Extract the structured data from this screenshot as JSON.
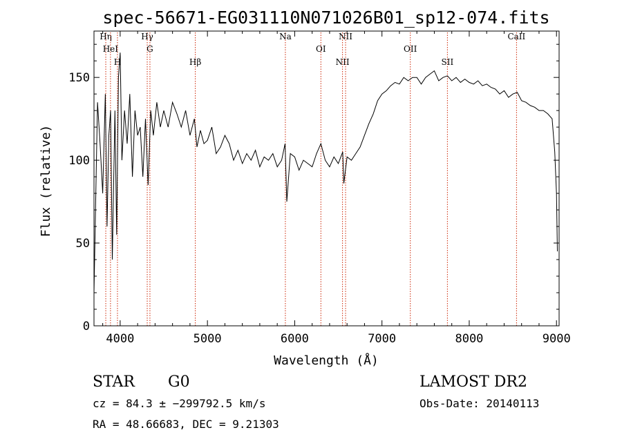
{
  "chart_data": {
    "type": "line",
    "title": "spec-56671-EG031110N071026B01_sp12-074.fits",
    "xlabel": "Wavelength (Å)",
    "ylabel": "Flux (relative)",
    "xlim": [
      3700,
      9030
    ],
    "ylim": [
      0,
      178
    ],
    "x_ticks": [
      4000,
      5000,
      6000,
      7000,
      8000,
      9000
    ],
    "y_ticks": [
      0,
      50,
      100,
      150
    ],
    "grid": false,
    "series": [
      {
        "x": [
          3700,
          3740,
          3770,
          3800,
          3830,
          3850,
          3870,
          3890,
          3910,
          3940,
          3960,
          3980,
          4000,
          4020,
          4050,
          4080,
          4110,
          4140,
          4170,
          4200,
          4230,
          4260,
          4290,
          4320,
          4350,
          4380,
          4420,
          4460,
          4500,
          4550,
          4600,
          4650,
          4700,
          4750,
          4800,
          4850,
          4880,
          4920,
          4960,
          5000,
          5050,
          5100,
          5150,
          5200,
          5250,
          5300,
          5350,
          5400,
          5450,
          5500,
          5550,
          5600,
          5650,
          5700,
          5750,
          5800,
          5850,
          5890,
          5910,
          5950,
          6000,
          6050,
          6100,
          6150,
          6200,
          6250,
          6300,
          6350,
          6400,
          6450,
          6500,
          6550,
          6563,
          6600,
          6650,
          6700,
          6750,
          6800,
          6850,
          6900,
          6950,
          7000,
          7050,
          7100,
          7150,
          7200,
          7250,
          7300,
          7350,
          7400,
          7450,
          7500,
          7550,
          7600,
          7650,
          7700,
          7750,
          7800,
          7850,
          7900,
          7950,
          8000,
          8050,
          8100,
          8150,
          8200,
          8250,
          8300,
          8350,
          8400,
          8450,
          8500,
          8550,
          8600,
          8650,
          8700,
          8750,
          8800,
          8850,
          8900,
          8950,
          8980,
          9000,
          9010
        ],
        "y": [
          20,
          135,
          110,
          80,
          140,
          60,
          115,
          130,
          40,
          130,
          55,
          150,
          165,
          100,
          130,
          110,
          140,
          90,
          130,
          115,
          120,
          90,
          125,
          85,
          130,
          115,
          135,
          120,
          130,
          120,
          135,
          128,
          120,
          130,
          115,
          125,
          108,
          118,
          110,
          112,
          120,
          104,
          108,
          115,
          110,
          100,
          106,
          98,
          104,
          100,
          106,
          96,
          102,
          100,
          104,
          96,
          100,
          110,
          75,
          104,
          102,
          94,
          100,
          98,
          96,
          104,
          110,
          100,
          96,
          102,
          98,
          105,
          86,
          102,
          100,
          104,
          108,
          115,
          122,
          128,
          136,
          140,
          142,
          145,
          147,
          146,
          150,
          148,
          150,
          150,
          146,
          150,
          152,
          154,
          148,
          150,
          151,
          148,
          150,
          147,
          149,
          147,
          146,
          148,
          145,
          146,
          144,
          143,
          140,
          142,
          138,
          140,
          141,
          136,
          135,
          133,
          132,
          130,
          130,
          128,
          125,
          105,
          80,
          45
        ]
      }
    ],
    "line_markers": [
      {
        "label": "Hη",
        "wavelength": 3835
      },
      {
        "label": "HeI",
        "wavelength": 3889
      },
      {
        "label": "H",
        "wavelength": 3969
      },
      {
        "label": "Hγ",
        "wavelength": 4310
      },
      {
        "label": "G",
        "wavelength": 4341
      },
      {
        "label": "Hβ",
        "wavelength": 4861
      },
      {
        "label": "Na",
        "wavelength": 5893
      },
      {
        "label": "OI",
        "wavelength": 6300
      },
      {
        "label": "NII",
        "wavelength": 6548
      },
      {
        "label": "NII",
        "wavelength": 6583
      },
      {
        "label": "OII",
        "wavelength": 7325
      },
      {
        "label": "SII",
        "wavelength": 7750
      },
      {
        "label": "CaII",
        "wavelength": 8542
      }
    ],
    "marker_color": "#cc2200"
  },
  "footer": {
    "class_label": "STAR",
    "subclass": "G0",
    "survey": "LAMOST DR2",
    "cz_text": "cz = 84.3 ± −299792.5 km/s",
    "obs_date": "Obs-Date: 20140113",
    "coords": "RA =  48.66683, DEC =   9.21303"
  }
}
